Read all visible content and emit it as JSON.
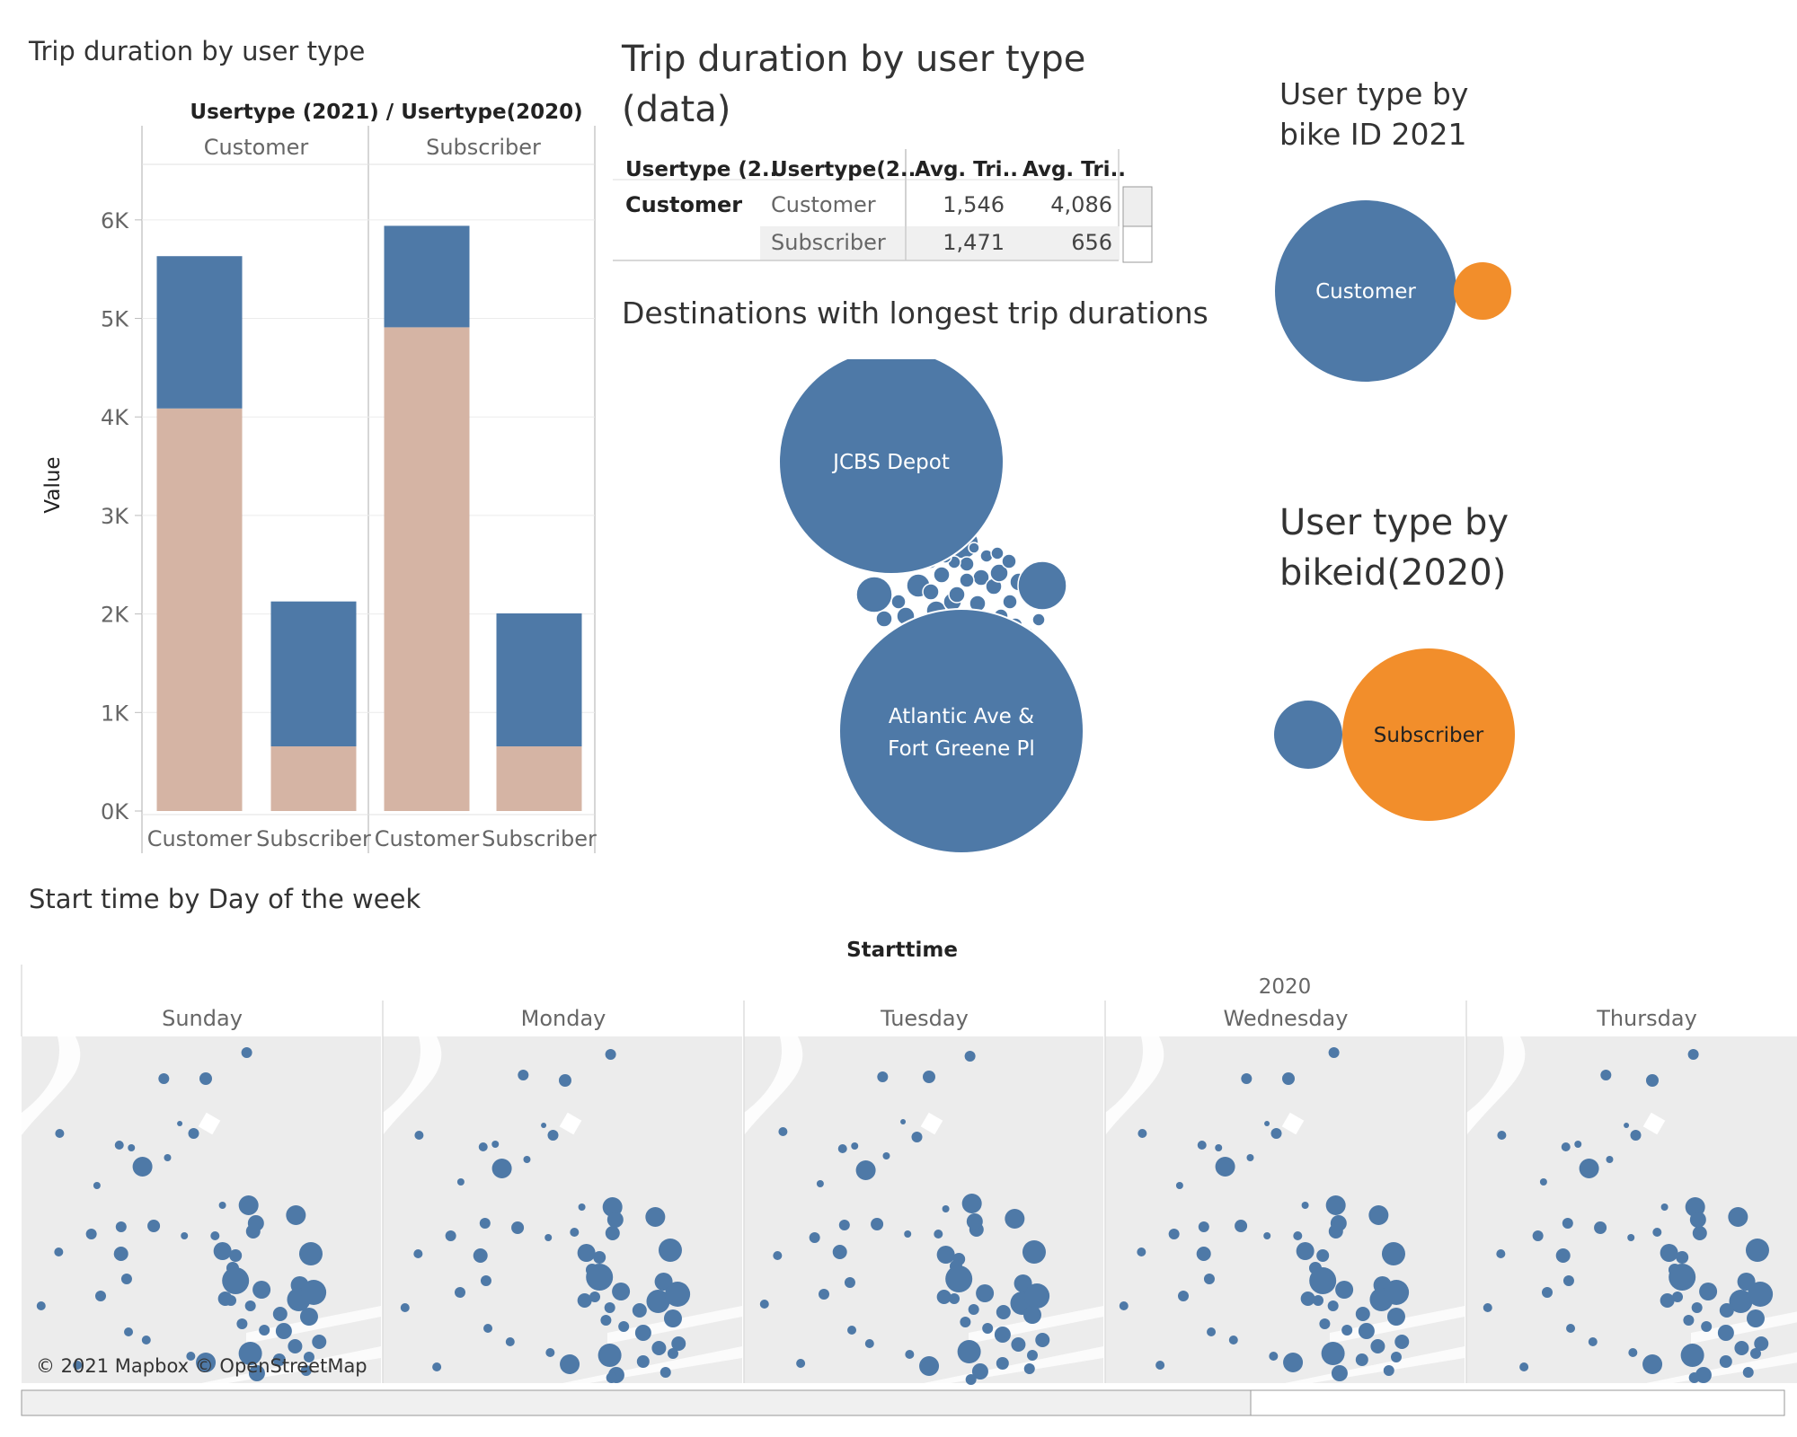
{
  "titles": {
    "bar_chart": "Trip duration by user type",
    "data_table": "Trip duration by user type (data)",
    "destinations": "Destinations with longest trip durations",
    "bike_2021": "User type by bike ID 2021",
    "bike_2020": "User type by bikeid(2020)",
    "map": "Start time by Day of the week"
  },
  "colors": {
    "blue": "#4e79a7",
    "tan": "#d5b4a4",
    "orange": "#f28e2b",
    "map_bg": "#ececec"
  },
  "bar_panel": {
    "header": "Usertype (2021)  /  Usertype(2020)",
    "columns": [
      "Customer",
      "Subscriber"
    ]
  },
  "chart_data": [
    {
      "type": "bar",
      "title": "Trip duration by user type",
      "ylabel": "Value",
      "ylim": [
        0,
        6500
      ],
      "yticks": [
        {
          "v": 0,
          "label": "0K"
        },
        {
          "v": 1000,
          "label": "1K"
        },
        {
          "v": 2000,
          "label": "2K"
        },
        {
          "v": 3000,
          "label": "3K"
        },
        {
          "v": 4000,
          "label": "4K"
        },
        {
          "v": 5000,
          "label": "5K"
        },
        {
          "v": 6000,
          "label": "6K"
        }
      ],
      "groups": [
        {
          "name": "Customer",
          "categories": [
            "Customer",
            "Subscriber"
          ]
        },
        {
          "name": "Subscriber",
          "categories": [
            "Customer",
            "Subscriber"
          ]
        }
      ],
      "series": [
        {
          "color": "tan",
          "values": [
            4086,
            656,
            4910,
            656
          ]
        },
        {
          "color": "blue",
          "values": [
            1546,
            1471,
            1030,
            1350
          ]
        }
      ]
    },
    {
      "type": "table",
      "title": "Trip duration by user type (data)",
      "columns": [
        "Usertype (2..",
        "Usertype(2..",
        "Avg. Tri..",
        "Avg. Tri.."
      ],
      "rows": [
        [
          "Customer",
          "Customer",
          "1,546",
          "4,086"
        ],
        [
          "",
          "Subscriber",
          "1,471",
          "656"
        ]
      ]
    },
    {
      "type": "bubble",
      "title": "Destinations with longest trip durations",
      "labels": [
        "JCBS Depot",
        "Atlantic Ave & Fort Greene Pl"
      ]
    },
    {
      "type": "bubble",
      "title": "User type by bike ID 2021",
      "labels": [
        "Customer"
      ]
    },
    {
      "type": "bubble",
      "title": "User type by bikeid(2020)",
      "labels": [
        "Subscriber"
      ]
    },
    {
      "type": "map",
      "title": "Start time by Day of the week",
      "header": "Starttime",
      "year": "2020",
      "days": [
        "Sunday",
        "Monday",
        "Tuesday",
        "Wednesday",
        "Thursday"
      ],
      "attribution": "© 2021 Mapbox © OpenStreetMap"
    }
  ]
}
